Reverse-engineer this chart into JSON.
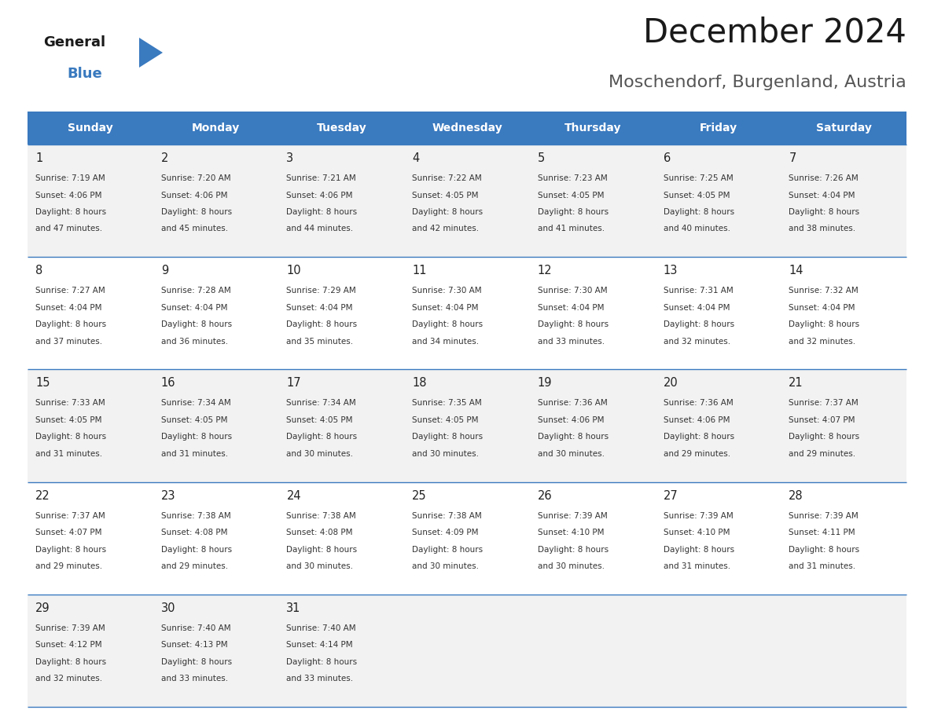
{
  "title": "December 2024",
  "subtitle": "Moschendorf, Burgenland, Austria",
  "header_color": "#3a7abf",
  "header_text_color": "#ffffff",
  "cell_bg_odd": "#f2f2f2",
  "cell_bg_even": "#ffffff",
  "border_color": "#3a7abf",
  "text_color": "#333333",
  "day_num_color": "#222222",
  "days_of_week": [
    "Sunday",
    "Monday",
    "Tuesday",
    "Wednesday",
    "Thursday",
    "Friday",
    "Saturday"
  ],
  "weeks": [
    [
      {
        "day": 1,
        "sunrise": "7:19 AM",
        "sunset": "4:06 PM",
        "daylight_hours": 8,
        "daylight_minutes": 47
      },
      {
        "day": 2,
        "sunrise": "7:20 AM",
        "sunset": "4:06 PM",
        "daylight_hours": 8,
        "daylight_minutes": 45
      },
      {
        "day": 3,
        "sunrise": "7:21 AM",
        "sunset": "4:06 PM",
        "daylight_hours": 8,
        "daylight_minutes": 44
      },
      {
        "day": 4,
        "sunrise": "7:22 AM",
        "sunset": "4:05 PM",
        "daylight_hours": 8,
        "daylight_minutes": 42
      },
      {
        "day": 5,
        "sunrise": "7:23 AM",
        "sunset": "4:05 PM",
        "daylight_hours": 8,
        "daylight_minutes": 41
      },
      {
        "day": 6,
        "sunrise": "7:25 AM",
        "sunset": "4:05 PM",
        "daylight_hours": 8,
        "daylight_minutes": 40
      },
      {
        "day": 7,
        "sunrise": "7:26 AM",
        "sunset": "4:04 PM",
        "daylight_hours": 8,
        "daylight_minutes": 38
      }
    ],
    [
      {
        "day": 8,
        "sunrise": "7:27 AM",
        "sunset": "4:04 PM",
        "daylight_hours": 8,
        "daylight_minutes": 37
      },
      {
        "day": 9,
        "sunrise": "7:28 AM",
        "sunset": "4:04 PM",
        "daylight_hours": 8,
        "daylight_minutes": 36
      },
      {
        "day": 10,
        "sunrise": "7:29 AM",
        "sunset": "4:04 PM",
        "daylight_hours": 8,
        "daylight_minutes": 35
      },
      {
        "day": 11,
        "sunrise": "7:30 AM",
        "sunset": "4:04 PM",
        "daylight_hours": 8,
        "daylight_minutes": 34
      },
      {
        "day": 12,
        "sunrise": "7:30 AM",
        "sunset": "4:04 PM",
        "daylight_hours": 8,
        "daylight_minutes": 33
      },
      {
        "day": 13,
        "sunrise": "7:31 AM",
        "sunset": "4:04 PM",
        "daylight_hours": 8,
        "daylight_minutes": 32
      },
      {
        "day": 14,
        "sunrise": "7:32 AM",
        "sunset": "4:04 PM",
        "daylight_hours": 8,
        "daylight_minutes": 32
      }
    ],
    [
      {
        "day": 15,
        "sunrise": "7:33 AM",
        "sunset": "4:05 PM",
        "daylight_hours": 8,
        "daylight_minutes": 31
      },
      {
        "day": 16,
        "sunrise": "7:34 AM",
        "sunset": "4:05 PM",
        "daylight_hours": 8,
        "daylight_minutes": 31
      },
      {
        "day": 17,
        "sunrise": "7:34 AM",
        "sunset": "4:05 PM",
        "daylight_hours": 8,
        "daylight_minutes": 30
      },
      {
        "day": 18,
        "sunrise": "7:35 AM",
        "sunset": "4:05 PM",
        "daylight_hours": 8,
        "daylight_minutes": 30
      },
      {
        "day": 19,
        "sunrise": "7:36 AM",
        "sunset": "4:06 PM",
        "daylight_hours": 8,
        "daylight_minutes": 30
      },
      {
        "day": 20,
        "sunrise": "7:36 AM",
        "sunset": "4:06 PM",
        "daylight_hours": 8,
        "daylight_minutes": 29
      },
      {
        "day": 21,
        "sunrise": "7:37 AM",
        "sunset": "4:07 PM",
        "daylight_hours": 8,
        "daylight_minutes": 29
      }
    ],
    [
      {
        "day": 22,
        "sunrise": "7:37 AM",
        "sunset": "4:07 PM",
        "daylight_hours": 8,
        "daylight_minutes": 29
      },
      {
        "day": 23,
        "sunrise": "7:38 AM",
        "sunset": "4:08 PM",
        "daylight_hours": 8,
        "daylight_minutes": 29
      },
      {
        "day": 24,
        "sunrise": "7:38 AM",
        "sunset": "4:08 PM",
        "daylight_hours": 8,
        "daylight_minutes": 30
      },
      {
        "day": 25,
        "sunrise": "7:38 AM",
        "sunset": "4:09 PM",
        "daylight_hours": 8,
        "daylight_minutes": 30
      },
      {
        "day": 26,
        "sunrise": "7:39 AM",
        "sunset": "4:10 PM",
        "daylight_hours": 8,
        "daylight_minutes": 30
      },
      {
        "day": 27,
        "sunrise": "7:39 AM",
        "sunset": "4:10 PM",
        "daylight_hours": 8,
        "daylight_minutes": 31
      },
      {
        "day": 28,
        "sunrise": "7:39 AM",
        "sunset": "4:11 PM",
        "daylight_hours": 8,
        "daylight_minutes": 31
      }
    ],
    [
      {
        "day": 29,
        "sunrise": "7:39 AM",
        "sunset": "4:12 PM",
        "daylight_hours": 8,
        "daylight_minutes": 32
      },
      {
        "day": 30,
        "sunrise": "7:40 AM",
        "sunset": "4:13 PM",
        "daylight_hours": 8,
        "daylight_minutes": 33
      },
      {
        "day": 31,
        "sunrise": "7:40 AM",
        "sunset": "4:14 PM",
        "daylight_hours": 8,
        "daylight_minutes": 33
      },
      null,
      null,
      null,
      null
    ]
  ],
  "logo_general_color": "#1a1a1a",
  "logo_blue_color": "#3a7abf",
  "logo_triangle_color": "#3a7abf"
}
